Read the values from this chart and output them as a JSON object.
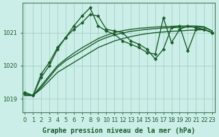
{
  "xlabel": "Graphe pression niveau de la mer (hPa)",
  "background_color": "#cceee8",
  "grid_color": "#99ccbb",
  "line_color": "#1a5c2a",
  "marker_color": "#1a5c2a",
  "ylim": [
    1018.6,
    1021.9
  ],
  "xlim": [
    -0.3,
    23.3
  ],
  "yticks": [
    1019,
    1020,
    1021
  ],
  "xticks": [
    0,
    1,
    2,
    3,
    4,
    5,
    6,
    7,
    8,
    9,
    10,
    11,
    12,
    13,
    14,
    15,
    16,
    17,
    18,
    19,
    20,
    21,
    22,
    23
  ],
  "series": [
    {
      "y": [
        1019.15,
        1019.1,
        1019.3,
        1019.55,
        1019.8,
        1019.95,
        1020.1,
        1020.25,
        1020.4,
        1020.55,
        1020.65,
        1020.75,
        1020.82,
        1020.88,
        1020.93,
        1020.97,
        1021.0,
        1021.02,
        1021.04,
        1021.05,
        1021.07,
        1021.08,
        1021.09,
        1021.0
      ],
      "markers": false,
      "lw": 1.0
    },
    {
      "y": [
        1019.1,
        1019.1,
        1019.35,
        1019.65,
        1019.95,
        1020.15,
        1020.3,
        1020.45,
        1020.6,
        1020.75,
        1020.85,
        1020.93,
        1020.99,
        1021.04,
        1021.07,
        1021.1,
        1021.12,
        1021.14,
        1021.15,
        1021.16,
        1021.17,
        1021.17,
        1021.16,
        1021.05
      ],
      "markers": false,
      "lw": 1.0
    },
    {
      "y": [
        1019.1,
        1019.1,
        1019.4,
        1019.7,
        1020.0,
        1020.2,
        1020.38,
        1020.54,
        1020.68,
        1020.82,
        1020.92,
        1021.0,
        1021.06,
        1021.1,
        1021.13,
        1021.15,
        1021.17,
        1021.18,
        1021.19,
        1021.2,
        1021.2,
        1021.2,
        1021.18,
        1021.05
      ],
      "markers": false,
      "lw": 1.0
    },
    {
      "y": [
        1019.2,
        1019.1,
        1019.75,
        1020.1,
        1020.55,
        1020.85,
        1021.1,
        1021.3,
        1021.55,
        1021.5,
        1021.1,
        1021.05,
        1021.0,
        1020.75,
        1020.65,
        1020.5,
        1020.2,
        1020.5,
        1021.15,
        1021.2,
        1020.45,
        1021.1,
        1021.1,
        1021.0
      ],
      "markers": true,
      "lw": 1.0
    },
    {
      "y": [
        1019.15,
        1019.1,
        1019.65,
        1020.0,
        1020.5,
        1020.85,
        1021.2,
        1021.5,
        1021.75,
        1021.2,
        1021.05,
        1020.95,
        1020.75,
        1020.65,
        1020.55,
        1020.4,
        1020.35,
        1021.45,
        1020.7,
        1021.1,
        1021.2,
        1021.15,
        1021.1,
        1021.0
      ],
      "markers": true,
      "lw": 1.0
    }
  ],
  "marker_style": "D",
  "marker_size": 2.5,
  "font_color": "#1a5c2a",
  "tick_fontsize": 6,
  "xlabel_fontsize": 7
}
